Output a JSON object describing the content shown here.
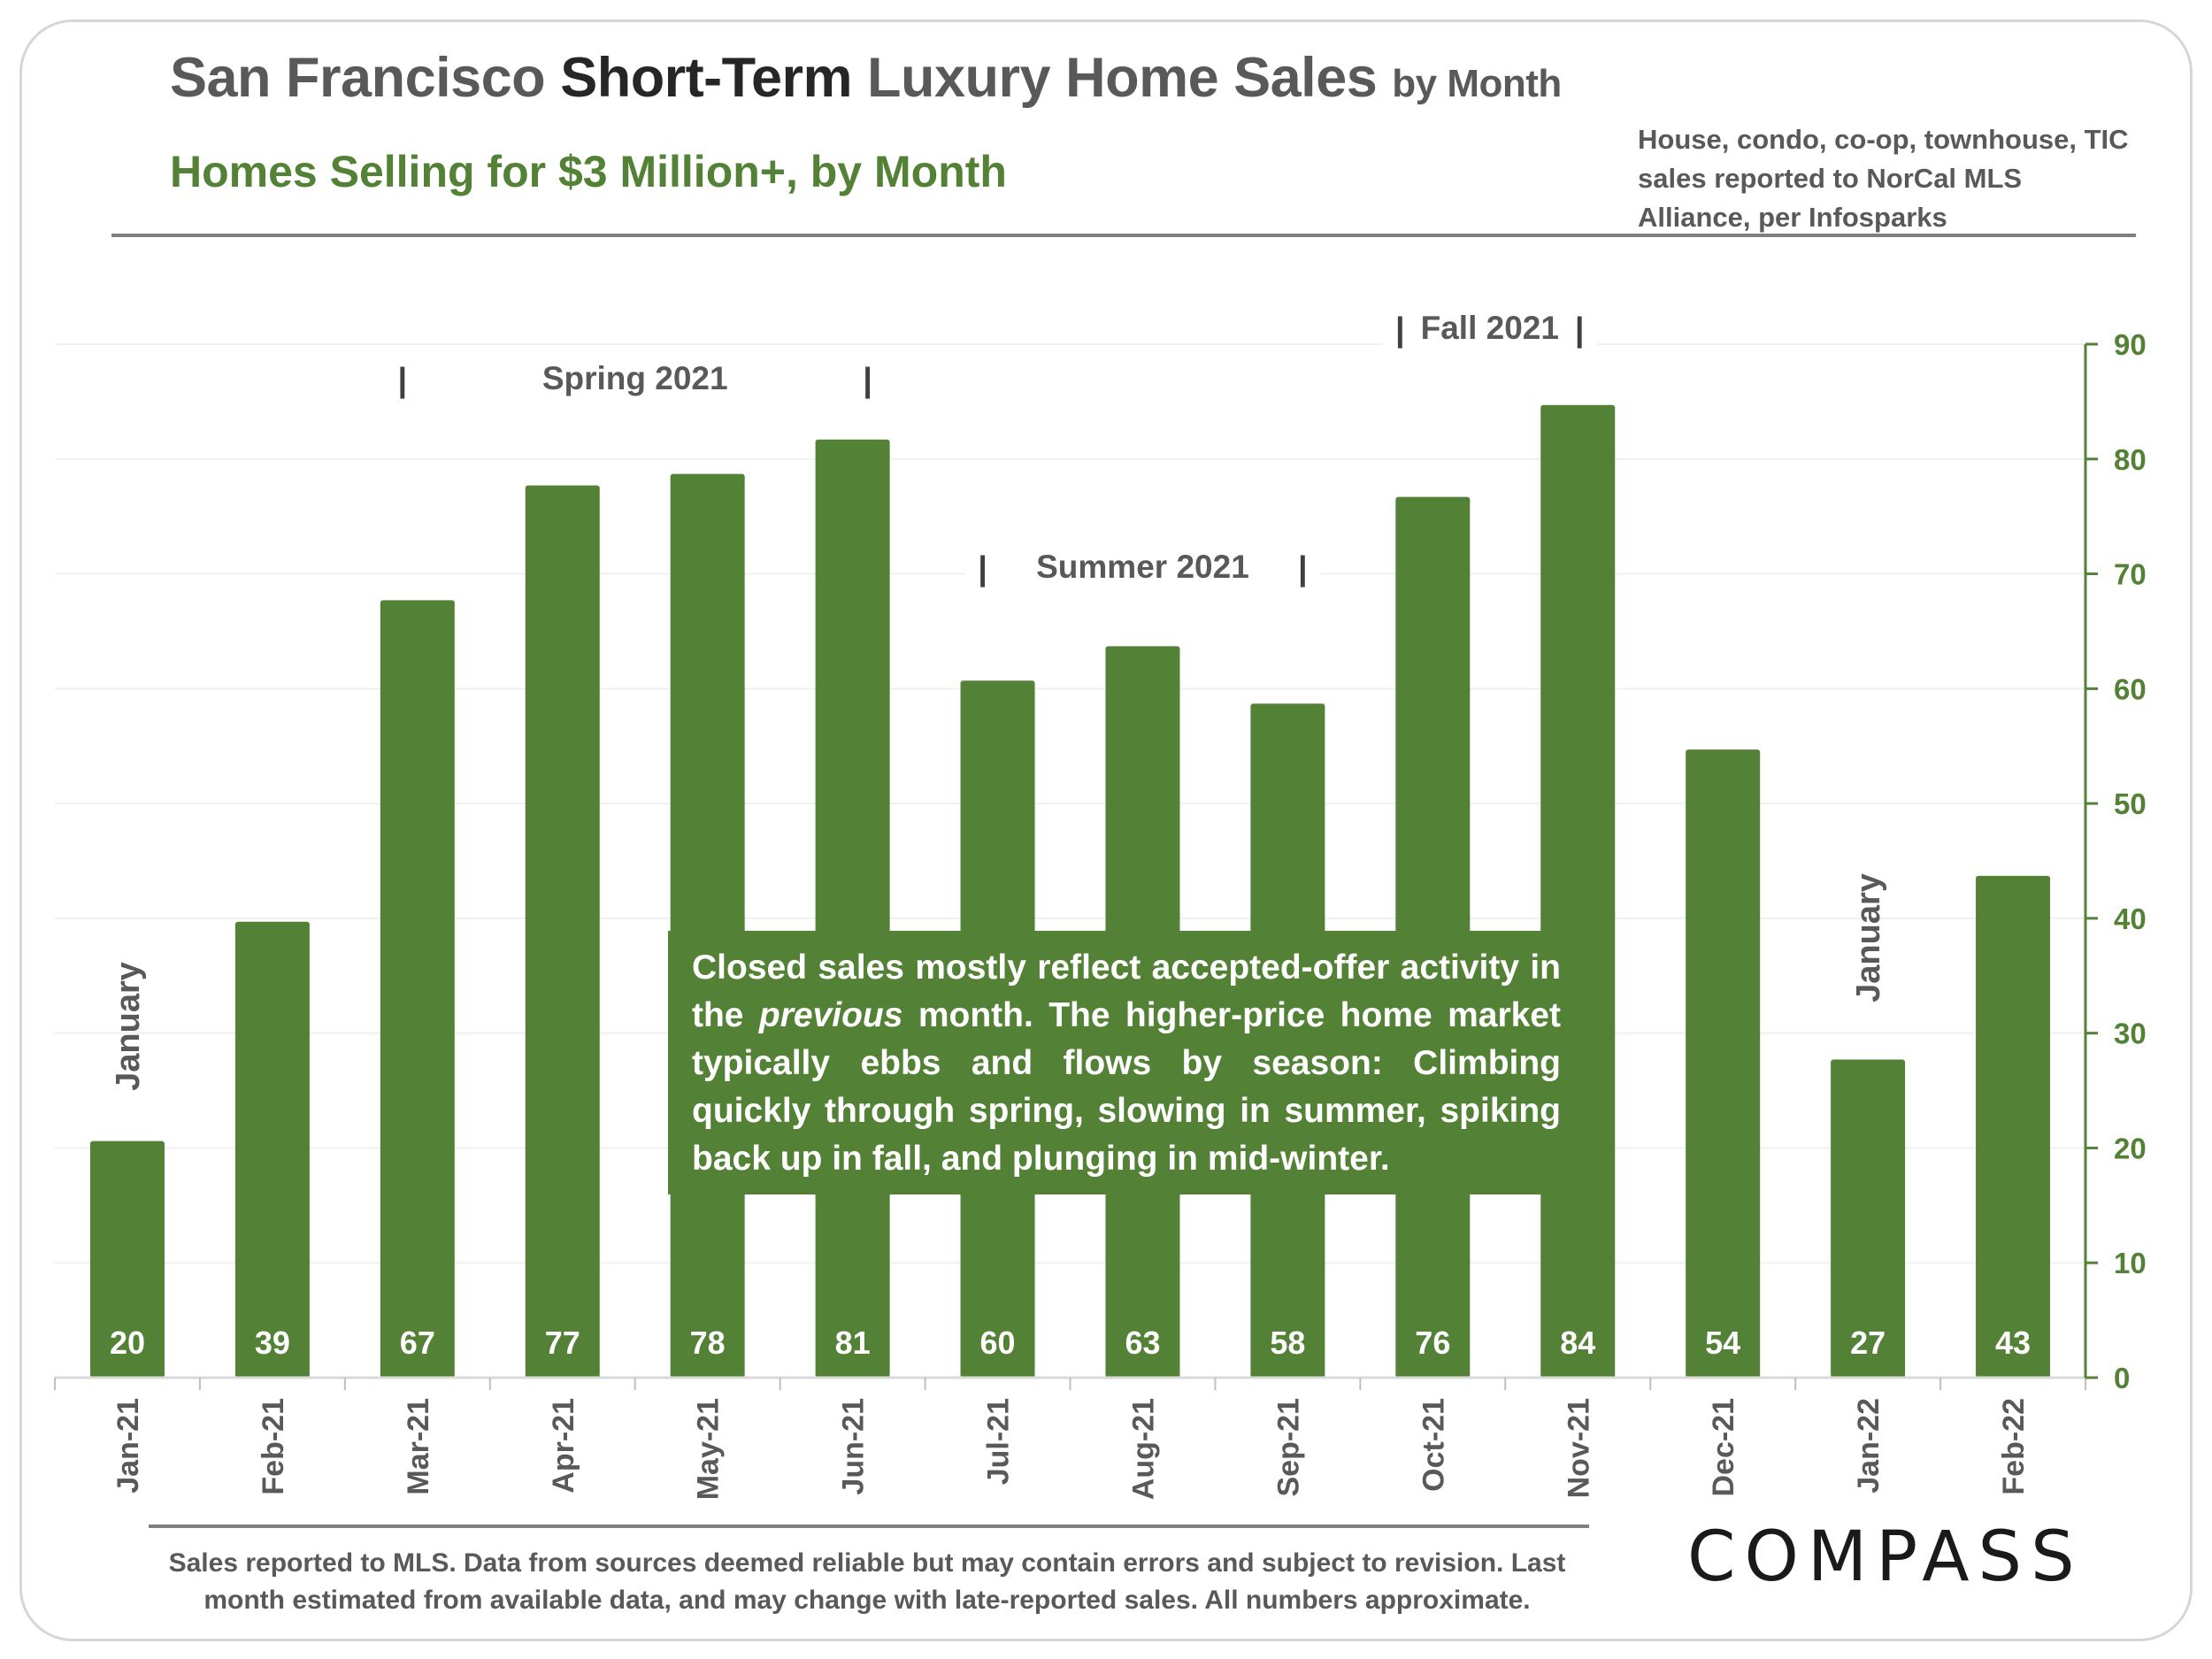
{
  "header": {
    "title_part1": "San Francisco",
    "title_part2": "Short-Term",
    "title_part3": "Luxury Home Sales",
    "title_part4": "by Month",
    "subtitle": "Homes Selling for $3 Million+, by Month",
    "source_note": "House, condo, co-op, townhouse, TIC sales reported to NorCal MLS Alliance, per Infosparks"
  },
  "annotation": {
    "text_before": "Closed sales mostly reflect accepted-offer activity in the",
    "text_italic": "previous",
    "text_after": "month. The higher-price home market typically ebbs and flows by season: Climbing quickly through spring, slowing in summer, spiking back up in fall, and plunging in mid-winter."
  },
  "footer": {
    "footnote": "Sales reported to MLS. Data from sources deemed reliable but may contain errors and subject to revision.  Last month estimated from available data, and may change with late-reported sales. All numbers approximate.",
    "logo": "COMPASS"
  },
  "colors": {
    "bar": "#538135",
    "axis_text": "#538135",
    "label_text": "#595959"
  },
  "chart_data": {
    "type": "bar",
    "categories": [
      "Jan-21",
      "Feb-21",
      "Mar-21",
      "Apr-21",
      "May-21",
      "Jun-21",
      "Jul-21",
      "Aug-21",
      "Sep-21",
      "Oct-21",
      "Nov-21",
      "Dec-21",
      "Jan-22",
      "Feb-22"
    ],
    "series": [
      {
        "name": "Homes sold for $3 Million+",
        "values": [
          20,
          39,
          67,
          77,
          78,
          81,
          60,
          63,
          58,
          76,
          84,
          54,
          27,
          43
        ]
      }
    ],
    "bar_heights_approx": [
      20.6,
      39.7,
      67.7,
      77.7,
      78.7,
      81.7,
      60.7,
      63.7,
      58.7,
      76.7,
      84.7,
      54.7,
      27.7,
      43.7
    ],
    "ylim": [
      0,
      90
    ],
    "yticks": [
      0,
      10,
      20,
      30,
      40,
      50,
      60,
      70,
      80,
      90
    ],
    "y_axis_side": "right",
    "grid": true,
    "xlabel": "",
    "ylabel": "",
    "season_labels": [
      {
        "text": "Spring 2021",
        "from": "Mar-21",
        "to": "Jun-21"
      },
      {
        "text": "Summer 2021",
        "from": "Jul-21",
        "to": "Sep-21"
      },
      {
        "text": "Fall 2021",
        "from": "Oct-21",
        "to": "Nov-21"
      }
    ],
    "vertical_labels": [
      {
        "text": "January",
        "category": "Jan-21"
      },
      {
        "text": "January",
        "category": "Jan-22"
      }
    ]
  }
}
